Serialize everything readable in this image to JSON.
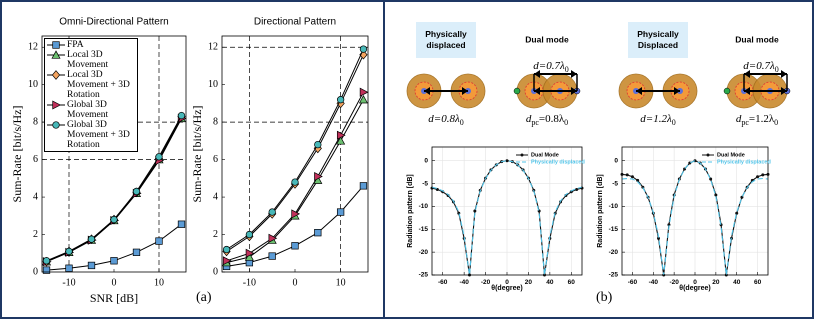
{
  "chart_data": [
    {
      "type": "line",
      "title": "Omni-Directional Pattern",
      "xlabel": "SNR [dB]",
      "ylabel": "Sum-Rate [bit/s/Hz]",
      "x": [
        -15,
        -10,
        -5,
        0,
        5,
        10,
        15
      ],
      "xlim": [
        -16,
        16
      ],
      "xticks": [
        -10,
        0,
        10
      ],
      "ylim": [
        0,
        12.6
      ],
      "yticks": [
        0,
        2,
        4,
        6,
        8,
        10,
        12
      ],
      "reference_lines": {
        "x": [
          -10,
          10
        ],
        "y": [
          6,
          8
        ]
      },
      "legend": "upper left",
      "line_color": "#000000",
      "series": [
        {
          "name": "FPA",
          "color": "#5b9bd5",
          "marker": "square",
          "values": [
            0.1,
            0.2,
            0.35,
            0.6,
            1.05,
            1.65,
            2.55
          ]
        },
        {
          "name": "Local 3D Movement",
          "color": "#6cc070",
          "marker": "triangle",
          "values": [
            0.55,
            1.05,
            1.7,
            2.75,
            4.2,
            6.0,
            8.2
          ]
        },
        {
          "name": "Local 3D Movement + 3D Rotation",
          "color": "#f4a460",
          "marker": "diamond",
          "values": [
            0.55,
            1.1,
            1.75,
            2.8,
            4.25,
            6.05,
            8.3
          ]
        },
        {
          "name": "Global 3D Movement",
          "color": "#c0305a",
          "marker": "triangle-right",
          "values": [
            0.55,
            1.05,
            1.7,
            2.75,
            4.2,
            5.95,
            8.2
          ]
        },
        {
          "name": "Global 3D Movement + 3D Rotation",
          "color": "#48b8b8",
          "marker": "circle",
          "values": [
            0.6,
            1.1,
            1.75,
            2.8,
            4.3,
            6.15,
            8.35
          ]
        }
      ]
    },
    {
      "type": "line",
      "title": "Directional Pattern",
      "ylabel": "Sum-Rate [bit/s/Hz]",
      "x": [
        -15,
        -10,
        -5,
        0,
        5,
        10,
        15
      ],
      "xlim": [
        -16,
        16
      ],
      "xticks": [
        -10,
        0,
        10
      ],
      "ylim": [
        0,
        12.6
      ],
      "yticks": [
        0,
        2,
        4,
        6,
        8,
        10,
        12
      ],
      "reference_lines": {
        "x": [
          -10,
          10
        ],
        "y": [
          8,
          12
        ]
      },
      "line_color": "#000000",
      "series": [
        {
          "color": "#5b9bd5",
          "marker": "square",
          "values": [
            0.3,
            0.5,
            0.85,
            1.4,
            2.1,
            3.2,
            4.6
          ]
        },
        {
          "color": "#6cc070",
          "marker": "triangle",
          "values": [
            0.5,
            0.8,
            1.7,
            3.0,
            4.9,
            7.0,
            9.2
          ]
        },
        {
          "color": "#f4a460",
          "marker": "diamond",
          "values": [
            1.1,
            1.9,
            3.1,
            4.7,
            6.6,
            9.0,
            11.6
          ]
        },
        {
          "color": "#c0305a",
          "marker": "triangle-right",
          "values": [
            0.6,
            1.0,
            1.8,
            3.1,
            5.1,
            7.3,
            9.6
          ]
        },
        {
          "color": "#48b8b8",
          "marker": "circle",
          "values": [
            1.2,
            2.0,
            3.2,
            4.8,
            6.8,
            9.2,
            11.9
          ]
        }
      ]
    },
    {
      "type": "line",
      "xlabel": "θ(degree)",
      "ylabel": "Radiation pattern [dB]",
      "x": [
        -70,
        -65,
        -60,
        -55,
        -50,
        -45,
        -40,
        -35,
        -30,
        -25,
        -20,
        -15,
        -10,
        -5,
        0,
        5,
        10,
        15,
        20,
        25,
        30,
        35,
        40,
        45,
        50,
        55,
        60,
        65,
        70
      ],
      "xlim": [
        -70,
        70
      ],
      "xticks": [
        -60,
        -40,
        -20,
        0,
        20,
        40,
        60
      ],
      "ylim": [
        -25,
        3
      ],
      "yticks": [
        -25,
        -20,
        -15,
        -10,
        -5,
        0
      ],
      "grid": true,
      "legend": "upper right",
      "series": [
        {
          "name": "Dual Mode",
          "color": "#111111",
          "marker": "dot",
          "values": [
            -6,
            -6.3,
            -6.8,
            -7.6,
            -9,
            -11.5,
            -17,
            -25,
            -11,
            -6.5,
            -3.8,
            -2,
            -0.9,
            -0.2,
            0,
            -0.2,
            -0.9,
            -2,
            -3.8,
            -6.5,
            -11,
            -25,
            -17,
            -11.5,
            -9,
            -7.6,
            -6.8,
            -6.3,
            -6
          ]
        },
        {
          "name": "Physically displaced",
          "color": "#4fc3e8",
          "dash": true,
          "values": [
            -5.8,
            -6.1,
            -6.6,
            -7.4,
            -8.8,
            -11.2,
            -16.5,
            -25,
            -11.3,
            -6.6,
            -3.9,
            -2.1,
            -0.9,
            -0.2,
            0,
            -0.2,
            -0.9,
            -2.1,
            -3.9,
            -6.6,
            -11.3,
            -25,
            -16.5,
            -11.2,
            -8.8,
            -7.4,
            -6.6,
            -6.1,
            -5.8
          ]
        }
      ]
    },
    {
      "type": "line",
      "xlabel": "θ(degree)",
      "ylabel": "Radiation pattern [dB]",
      "x": [
        -70,
        -65,
        -60,
        -55,
        -50,
        -45,
        -40,
        -35,
        -30,
        -25,
        -20,
        -15,
        -10,
        -5,
        0,
        5,
        10,
        15,
        20,
        25,
        30,
        35,
        40,
        45,
        50,
        55,
        60,
        65,
        70
      ],
      "xlim": [
        -70,
        70
      ],
      "xticks": [
        -60,
        -40,
        -20,
        0,
        20,
        40,
        60
      ],
      "ylim": [
        -25,
        3
      ],
      "yticks": [
        -25,
        -20,
        -15,
        -10,
        -5,
        0
      ],
      "grid": true,
      "legend": "upper right",
      "series": [
        {
          "name": "Dual Mode",
          "color": "#111111",
          "marker": "dot",
          "values": [
            -3,
            -3.1,
            -3.5,
            -4.3,
            -5.8,
            -8,
            -11.5,
            -17,
            -25,
            -14,
            -7.5,
            -4,
            -1.8,
            -0.5,
            0,
            -0.5,
            -1.8,
            -4,
            -7.5,
            -14,
            -25,
            -17,
            -11.5,
            -8,
            -5.8,
            -4.3,
            -3.5,
            -3.1,
            -3
          ]
        },
        {
          "name": "Physically displaced",
          "color": "#4fc3e8",
          "dash": true,
          "values": [
            -4,
            -3.9,
            -4,
            -4.6,
            -5.9,
            -8,
            -11.3,
            -16.5,
            -25,
            -14.5,
            -7.8,
            -4.1,
            -1.8,
            -0.5,
            0,
            -0.5,
            -1.8,
            -4.1,
            -7.8,
            -14.5,
            -25,
            -16.5,
            -11.3,
            -8,
            -5.9,
            -4.6,
            -4,
            -3.9,
            -4
          ]
        }
      ]
    }
  ],
  "diagrams": [
    {
      "title": [
        "Physically",
        "displaced"
      ],
      "boxed": true,
      "overlap": false,
      "bottom": [
        {
          "t": "d=0.8λ"
        },
        {
          "t": "0",
          "sub": true
        }
      ]
    },
    {
      "title": [
        "Dual mode"
      ],
      "boxed": false,
      "overlap": true,
      "top": [
        {
          "t": "d=0.7λ"
        },
        {
          "t": "0",
          "sub": true
        }
      ],
      "bottom": [
        {
          "t": "d"
        },
        {
          "t": "pc",
          "sub": true
        },
        {
          "t": "=0.8λ"
        },
        {
          "t": "0",
          "sub": true
        }
      ]
    },
    {
      "title": [
        "Physically",
        "Displaced"
      ],
      "boxed": true,
      "overlap": false,
      "bottom": [
        {
          "t": "d=1.2λ"
        },
        {
          "t": "0",
          "sub": true
        }
      ]
    },
    {
      "title": [
        "Dual mode"
      ],
      "boxed": false,
      "overlap": true,
      "top": [
        {
          "t": "d=0.7λ"
        },
        {
          "t": "0",
          "sub": true
        }
      ],
      "bottom": [
        {
          "t": "d"
        },
        {
          "t": "pc",
          "sub": true
        },
        {
          "t": "=1.2λ"
        },
        {
          "t": "0",
          "sub": true
        }
      ]
    }
  ],
  "panel_labels": [
    "(a)",
    "(b)"
  ]
}
